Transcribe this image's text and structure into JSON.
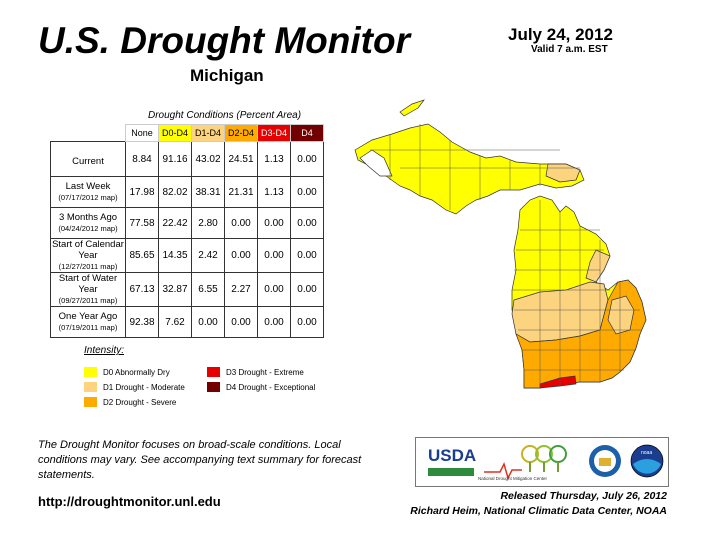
{
  "header": {
    "title": "U.S. Drought Monitor",
    "region": "Michigan",
    "date": "July 24, 2012",
    "valid": "Valid 7 a.m. EST"
  },
  "table": {
    "caption": "Drought Conditions (Percent Area)",
    "columns": [
      "None",
      "D0-D4",
      "D1-D4",
      "D2-D4",
      "D3-D4",
      "D4"
    ],
    "rows": [
      {
        "label": "Current",
        "sub": "",
        "values": [
          "8.84",
          "91.16",
          "43.02",
          "24.51",
          "1.13",
          "0.00"
        ]
      },
      {
        "label": "Last Week",
        "sub": "(07/17/2012 map)",
        "values": [
          "17.98",
          "82.02",
          "38.31",
          "21.31",
          "1.13",
          "0.00"
        ]
      },
      {
        "label": "3 Months Ago",
        "sub": "(04/24/2012 map)",
        "values": [
          "77.58",
          "22.42",
          "2.80",
          "0.00",
          "0.00",
          "0.00"
        ]
      },
      {
        "label": "Start of Calendar Year",
        "sub": "(12/27/2011 map)",
        "values": [
          "85.65",
          "14.35",
          "2.42",
          "0.00",
          "0.00",
          "0.00"
        ]
      },
      {
        "label": "Start of Water Year",
        "sub": "(09/27/2011 map)",
        "values": [
          "67.13",
          "32.87",
          "6.55",
          "2.27",
          "0.00",
          "0.00"
        ]
      },
      {
        "label": "One Year Ago",
        "sub": "(07/19/2011 map)",
        "values": [
          "92.38",
          "7.62",
          "0.00",
          "0.00",
          "0.00",
          "0.00"
        ]
      }
    ]
  },
  "legend": {
    "title": "Intensity:",
    "items": [
      {
        "label": "D0 Abnormally Dry",
        "color": "#ffff00"
      },
      {
        "label": "D1 Drought - Moderate",
        "color": "#fcd37f"
      },
      {
        "label": "D2 Drought - Severe",
        "color": "#ffaa00"
      },
      {
        "label": "D3 Drought - Extreme",
        "color": "#e60000"
      },
      {
        "label": "D4 Drought - Exceptional",
        "color": "#730000"
      }
    ]
  },
  "note": "The Drought Monitor focuses on broad-scale conditions. Local conditions may vary. See accompanying text summary for forecast statements.",
  "url": "http://droughtmonitor.unl.edu",
  "logos": {
    "usda": "USDA",
    "ndmc": "National Drought Mitigation Center",
    "noaa": "noaa"
  },
  "released": "Released Thursday, July 26, 2012",
  "author": "Richard Heim, National Climatic Data Center, NOAA"
}
